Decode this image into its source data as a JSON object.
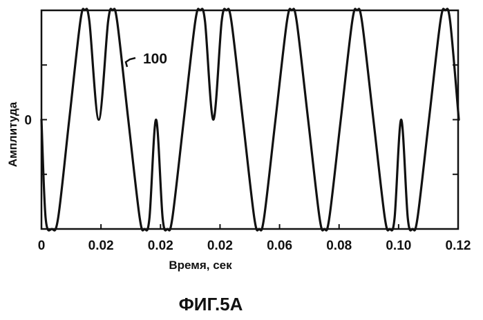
{
  "chart_data": {
    "type": "line",
    "title": "",
    "xlabel": "Время, сек",
    "ylabel": "Амплитуда",
    "xlim": [
      0,
      0.12
    ],
    "ylim": [
      -1,
      1
    ],
    "grid": false,
    "x_tick_labels": [
      "0",
      "0.02",
      "0.02",
      "0.02",
      "0.06",
      "0.08",
      "0.10",
      "0.12"
    ],
    "y_tick_labels": [
      "0"
    ],
    "annotation": "100",
    "caption": "ФИГ.5А",
    "series": [
      {
        "values": [
          [
            0.0,
            0.0
          ],
          [
            0.0012,
            -0.9
          ],
          [
            0.003,
            -1.0
          ],
          [
            0.0048,
            -0.9
          ],
          [
            0.008,
            0.0
          ],
          [
            0.0112,
            0.9
          ],
          [
            0.0125,
            1.0
          ],
          [
            0.0138,
            0.9
          ],
          [
            0.0165,
            0.0
          ],
          [
            0.0192,
            0.9
          ],
          [
            0.0205,
            1.0
          ],
          [
            0.0218,
            0.9
          ],
          [
            0.025,
            0.0
          ],
          [
            0.0283,
            -0.9
          ],
          [
            0.0297,
            -1.0
          ],
          [
            0.0311,
            -0.9
          ],
          [
            0.033,
            0.0
          ],
          [
            0.0349,
            -0.9
          ],
          [
            0.0363,
            -1.0
          ],
          [
            0.0377,
            -0.9
          ],
          [
            0.041,
            0.0
          ],
          [
            0.0443,
            0.9
          ],
          [
            0.0457,
            1.0
          ],
          [
            0.0471,
            0.9
          ],
          [
            0.0495,
            0.0
          ],
          [
            0.0519,
            0.9
          ],
          [
            0.0533,
            1.0
          ],
          [
            0.0547,
            0.9
          ],
          [
            0.058,
            0.0
          ],
          [
            0.0613,
            -0.9
          ],
          [
            0.0627,
            -1.0
          ],
          [
            0.0641,
            -0.9
          ],
          [
            0.0674,
            0.0
          ],
          [
            0.0707,
            0.9
          ],
          [
            0.0721,
            1.0
          ],
          [
            0.0735,
            0.9
          ],
          [
            0.0768,
            0.0
          ],
          [
            0.0801,
            -0.9
          ],
          [
            0.0815,
            -1.0
          ],
          [
            0.0829,
            -0.9
          ],
          [
            0.0862,
            0.0
          ],
          [
            0.0895,
            0.9
          ],
          [
            0.0909,
            1.0
          ],
          [
            0.0923,
            0.9
          ],
          [
            0.0956,
            0.0
          ],
          [
            0.0989,
            -0.9
          ],
          [
            0.1003,
            -1.0
          ],
          [
            0.1017,
            -0.9
          ],
          [
            0.1036,
            0.0
          ],
          [
            0.1055,
            -0.9
          ],
          [
            0.1069,
            -1.0
          ],
          [
            0.1083,
            -0.9
          ],
          [
            0.1116,
            0.0
          ],
          [
            0.1149,
            0.9
          ],
          [
            0.1163,
            1.0
          ],
          [
            0.1177,
            0.9
          ],
          [
            0.1202,
            0.0
          ]
        ]
      }
    ]
  }
}
